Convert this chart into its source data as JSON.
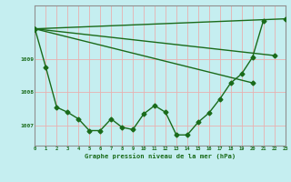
{
  "xlabel": "Graphe pression niveau de la mer (hPa)",
  "background_color": "#c5eef0",
  "grid_color": "#e8b0b0",
  "line_color": "#1a6b1a",
  "hours": [
    0,
    1,
    2,
    3,
    4,
    5,
    6,
    7,
    8,
    9,
    10,
    11,
    12,
    13,
    14,
    15,
    16,
    17,
    18,
    19,
    20,
    21,
    22,
    23
  ],
  "series_main": [
    1009.9,
    1008.75,
    1007.55,
    1007.4,
    1007.2,
    1006.85,
    1006.85,
    1007.2,
    1006.95,
    1006.88,
    1007.35,
    1007.6,
    1007.4,
    1006.72,
    1006.72,
    1007.1,
    1007.38,
    1007.8,
    1008.28,
    1008.55,
    1009.05,
    1010.15,
    null,
    null
  ],
  "line1_x": [
    0,
    23
  ],
  "line1_y": [
    1009.9,
    1010.2
  ],
  "line2_x": [
    0,
    22
  ],
  "line2_y": [
    1009.9,
    1009.1
  ],
  "line3_x": [
    0,
    20
  ],
  "line3_y": [
    1009.9,
    1008.28
  ],
  "ylim": [
    1006.4,
    1010.6
  ],
  "xlim": [
    0,
    23
  ],
  "yticks": [
    1007,
    1008,
    1009
  ],
  "xticks": [
    0,
    1,
    2,
    3,
    4,
    5,
    6,
    7,
    8,
    9,
    10,
    11,
    12,
    13,
    14,
    15,
    16,
    17,
    18,
    19,
    20,
    21,
    22,
    23
  ],
  "marker_size": 2.5,
  "linewidth": 1.0
}
